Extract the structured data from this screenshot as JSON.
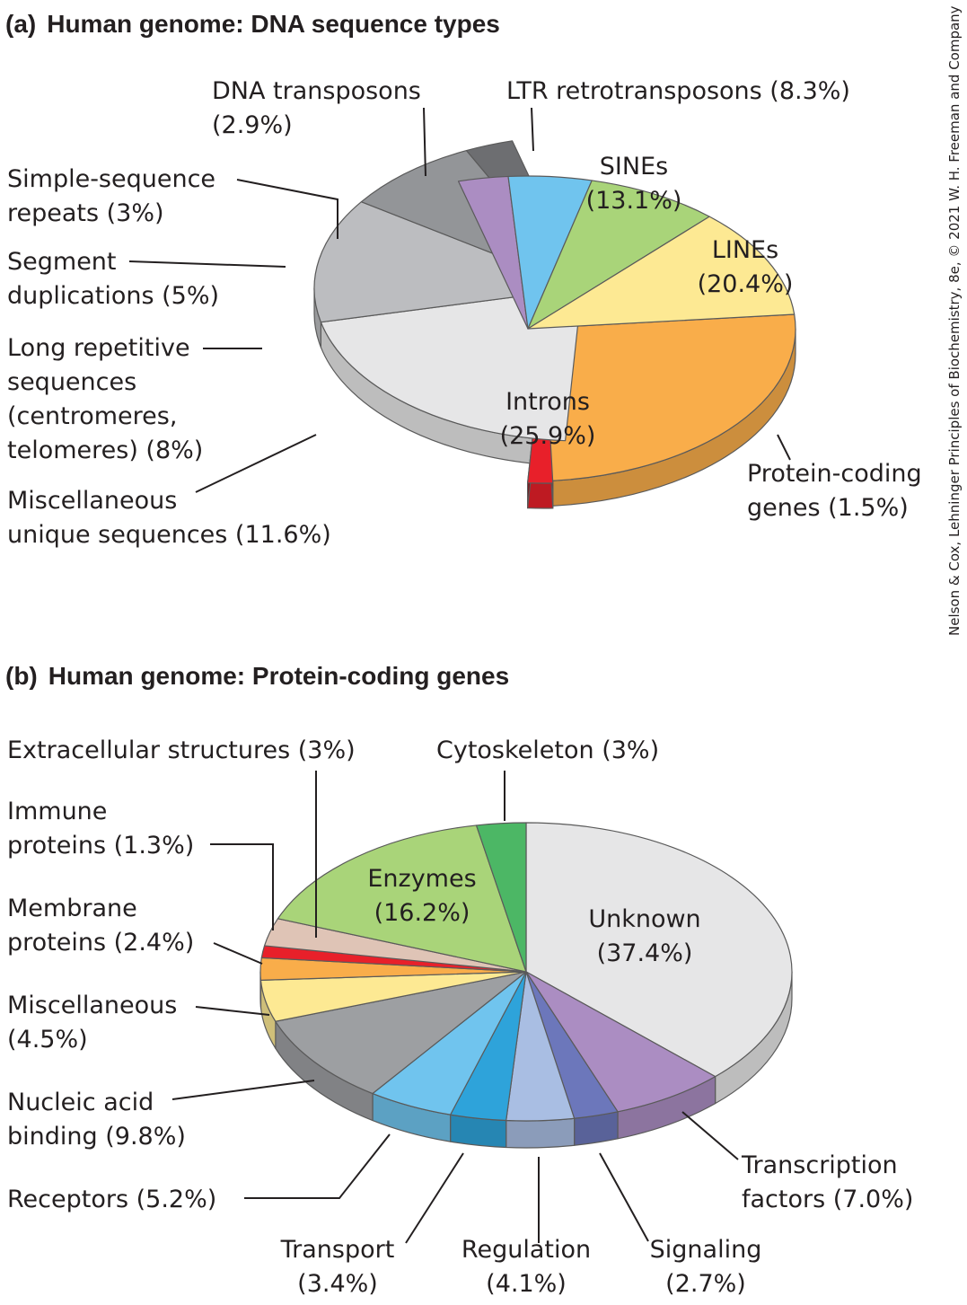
{
  "credit": "Nelson & Cox, Lehninger Principles of Biochemistry, 8e, © 2021 W. H. Freeman and Company",
  "chart_data": [
    {
      "type": "pie",
      "panel": "(a)",
      "title": "Human genome: DNA sequence types",
      "slices": [
        {
          "name": "Introns",
          "value": 25.9,
          "label": [
            "Introns",
            "(25.9%)"
          ],
          "color": "#f9ad4a"
        },
        {
          "name": "Protein-coding genes",
          "value": 1.5,
          "label": [
            "Protein-coding",
            "genes (1.5%)"
          ],
          "color": "#e8202a"
        },
        {
          "name": "LINEs",
          "value": 20.4,
          "label": [
            "LINEs",
            "(20.4%)"
          ],
          "color": "#e6e6e7"
        },
        {
          "name": "SINEs",
          "value": 13.1,
          "label": [
            "SINEs",
            "(13.1%)"
          ],
          "color": "#bcbdc0"
        },
        {
          "name": "LTR retrotransposons",
          "value": 8.3,
          "label": [
            "LTR retrotransposons (8.3%)"
          ],
          "color": "#939598"
        },
        {
          "name": "DNA transposons",
          "value": 2.9,
          "label": [
            "DNA transposons",
            "(2.9%)"
          ],
          "color": "#6d6e71"
        },
        {
          "name": "Simple-sequence repeats",
          "value": 3,
          "label": [
            "Simple-sequence",
            "repeats (3%)"
          ],
          "color": "#ab8dc2"
        },
        {
          "name": "Segment duplications",
          "value": 5,
          "label": [
            "Segment",
            "duplications (5%)"
          ],
          "color": "#70c4ee"
        },
        {
          "name": "Long repetitive sequences (centromeres, telomeres)",
          "value": 8,
          "label": [
            "Long repetitive",
            "sequences",
            "(centromeres,",
            "telomeres) (8%)"
          ],
          "color": "#a9d479"
        },
        {
          "name": "Miscellaneous unique sequences",
          "value": 11.6,
          "label": [
            "Miscellaneous",
            "unique sequences (11.6%)"
          ],
          "color": "#fde993"
        }
      ]
    },
    {
      "type": "pie",
      "panel": "(b)",
      "title": "Human genome: Protein-coding genes",
      "slices": [
        {
          "name": "Unknown",
          "value": 37.4,
          "label": [
            "Unknown",
            "(37.4%)"
          ],
          "color": "#e6e6e7"
        },
        {
          "name": "Transcription factors",
          "value": 7.0,
          "label": [
            "Transcription",
            "factors (7.0%)"
          ],
          "color": "#ab8dc2"
        },
        {
          "name": "Signaling",
          "value": 2.7,
          "label": [
            "Signaling",
            "(2.7%)"
          ],
          "color": "#6c77bb"
        },
        {
          "name": "Regulation",
          "value": 4.1,
          "label": [
            "Regulation",
            "(4.1%)"
          ],
          "color": "#a9bee3"
        },
        {
          "name": "Transport",
          "value": 3.4,
          "label": [
            "Transport",
            "(3.4%)"
          ],
          "color": "#2ea3da"
        },
        {
          "name": "Receptors",
          "value": 5.2,
          "label": [
            "Receptors (5.2%)"
          ],
          "color": "#70c4ee"
        },
        {
          "name": "Nucleic acid binding",
          "value": 9.8,
          "label": [
            "Nucleic acid",
            "binding (9.8%)"
          ],
          "color": "#9d9fa2"
        },
        {
          "name": "Miscellaneous",
          "value": 4.5,
          "label": [
            "Miscellaneous",
            "(4.5%)"
          ],
          "color": "#fde993"
        },
        {
          "name": "Membrane proteins",
          "value": 2.4,
          "label": [
            "Membrane",
            "proteins (2.4%)"
          ],
          "color": "#f9ad4a"
        },
        {
          "name": "Immune proteins",
          "value": 1.3,
          "label": [
            "Immune",
            "proteins (1.3%)"
          ],
          "color": "#e8202a"
        },
        {
          "name": "Extracellular structures",
          "value": 3,
          "label": [
            "Extracellular structures (3%)"
          ],
          "color": "#dfc4b6"
        },
        {
          "name": "Enzymes",
          "value": 16.2,
          "label": [
            "Enzymes",
            "(16.2%)"
          ],
          "color": "#a9d479"
        },
        {
          "name": "Cytoskeleton",
          "value": 3,
          "label": [
            "Cytoskeleton (3%)"
          ],
          "color": "#4cb765"
        }
      ]
    }
  ]
}
